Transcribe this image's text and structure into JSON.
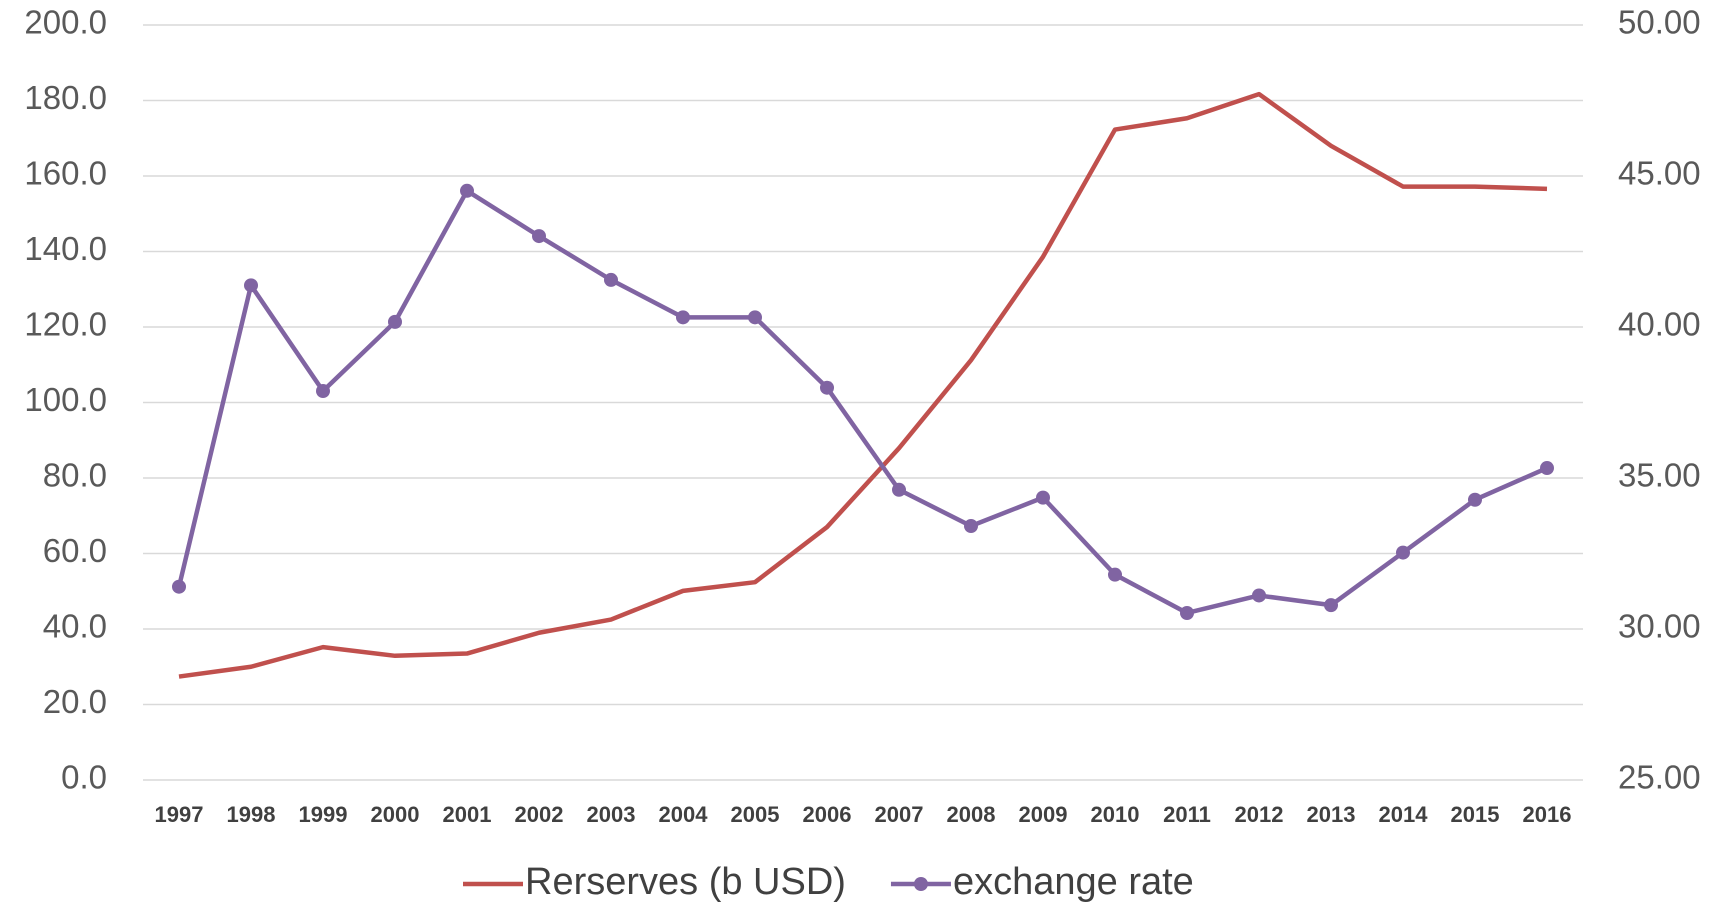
{
  "chart_data": {
    "type": "line",
    "categories": [
      "1997",
      "1998",
      "1999",
      "2000",
      "2001",
      "2002",
      "2003",
      "2004",
      "2005",
      "2006",
      "2007",
      "2008",
      "2009",
      "2010",
      "2011",
      "2012",
      "2013",
      "2014",
      "2015",
      "2016"
    ],
    "series": [
      {
        "name": "Rerserves (b USD)",
        "color": "#c0504d",
        "marker": false,
        "values": [
          27.4,
          30.0,
          35.2,
          32.9,
          33.5,
          39.0,
          42.5,
          50.1,
          52.4,
          67.0,
          87.9,
          111.2,
          138.6,
          172.3,
          175.3,
          181.7,
          168.0,
          157.2,
          157.2,
          156.6
        ]
      },
      {
        "name": "exchange rate",
        "color": "#8064a2",
        "marker": true,
        "axis": "y2",
        "values": [
          31.4,
          41.38,
          37.88,
          40.17,
          44.51,
          43.01,
          41.56,
          40.32,
          40.32,
          37.99,
          34.61,
          33.41,
          34.35,
          31.8,
          30.53,
          31.11,
          30.79,
          32.53,
          34.28,
          35.33
        ]
      }
    ],
    "ylim": [
      0,
      200
    ],
    "yticks": [
      {
        "value": 0,
        "label": "0.0"
      },
      {
        "value": 20,
        "label": "20.0"
      },
      {
        "value": 40,
        "label": "40.0"
      },
      {
        "value": 60,
        "label": "60.0"
      },
      {
        "value": 80,
        "label": "80.0"
      },
      {
        "value": 100,
        "label": "100.0"
      },
      {
        "value": 120,
        "label": "120.0"
      },
      {
        "value": 140,
        "label": "140.0"
      },
      {
        "value": 160,
        "label": "160.0"
      },
      {
        "value": 180,
        "label": "180.0"
      },
      {
        "value": 200,
        "label": "200.0"
      }
    ],
    "y2lim": [
      25,
      50
    ],
    "y2ticks": [
      {
        "value": 25,
        "label": "25.00"
      },
      {
        "value": 30,
        "label": "30.00"
      },
      {
        "value": 35,
        "label": "35.00"
      },
      {
        "value": 40,
        "label": "40.00"
      },
      {
        "value": 45,
        "label": "45.00"
      },
      {
        "value": 50,
        "label": "50.00"
      }
    ],
    "grid": true,
    "legend": "bottom"
  }
}
